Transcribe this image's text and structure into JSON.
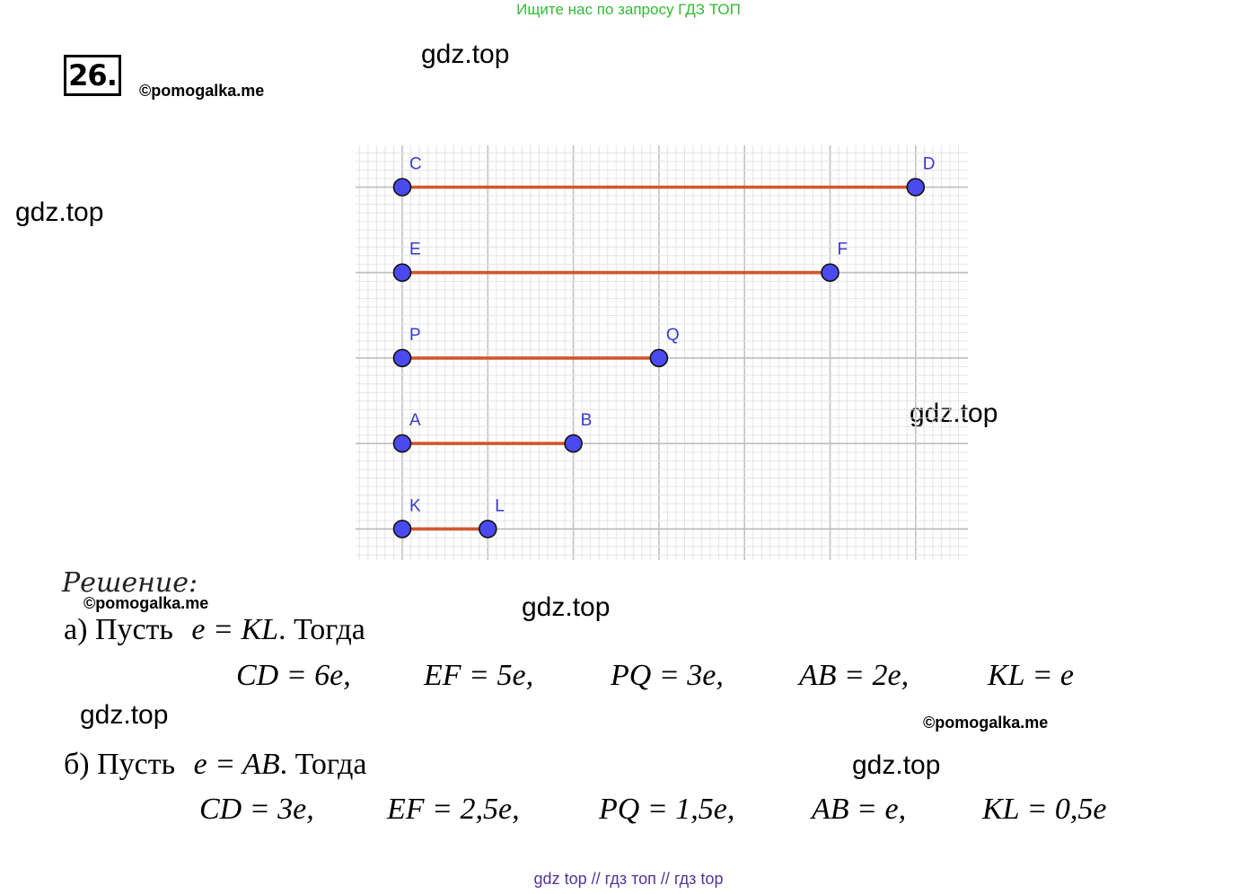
{
  "banner": "Ищите нас по запросу ГДЗ ТОП",
  "task_number": "26.",
  "credits": [
    "©pomogalka.me",
    "©pomogalka.me",
    "©pomogalka.me"
  ],
  "watermarks": [
    "gdz.top",
    "gdz.top",
    "gdz.top",
    "gdz.top",
    "gdz.top",
    "gdz.top"
  ],
  "figure": {
    "segments": [
      {
        "start": "C",
        "end": "D",
        "length_cells": 12
      },
      {
        "start": "E",
        "end": "F",
        "length_cells": 10
      },
      {
        "start": "P",
        "end": "Q",
        "length_cells": 6
      },
      {
        "start": "A",
        "end": "B",
        "length_cells": 4
      },
      {
        "start": "K",
        "end": "L",
        "length_cells": 2
      }
    ],
    "colors": {
      "segment": "#d2562a",
      "point": "#4a4af0",
      "label": "#3a3acc",
      "grid": "#e4e4e4",
      "grid_major": "#c2c2c2"
    }
  },
  "solution": {
    "heading": "Решение:",
    "part_a": {
      "intro_prefix": "а) Пусть",
      "intro_math": "e = KL",
      "intro_suffix": ". Тогда",
      "equations": [
        "CD = 6e,",
        "EF = 5e,",
        "PQ = 3e,",
        "AB = 2e,",
        "KL = e"
      ]
    },
    "part_b": {
      "intro_prefix": "б) Пусть",
      "intro_math": "e = AB",
      "intro_suffix": ". Тогда",
      "equations": [
        "CD = 3e,",
        "EF = 2,5e,",
        "PQ = 1,5e,",
        "AB = e,",
        "KL = 0,5e"
      ]
    }
  },
  "footer": "gdz top  //  гдз топ  //  гдз top"
}
